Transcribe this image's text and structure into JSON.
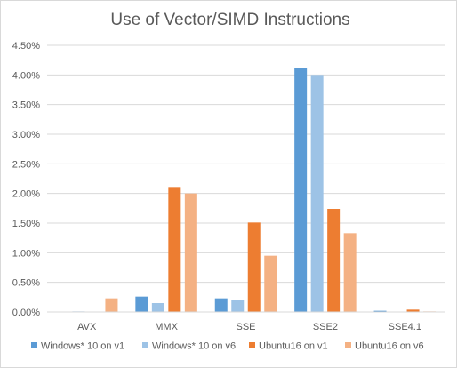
{
  "chart_data": {
    "type": "bar",
    "title": "Use of Vector/SIMD Instructions",
    "xlabel": "",
    "ylabel": "",
    "categories": [
      "AVX",
      "MMX",
      "SSE",
      "SSE2",
      "SSE4.1"
    ],
    "series": [
      {
        "name": "Windows* 10 on v1",
        "color": "#5b9bd5",
        "values": [
          0.0,
          0.26,
          0.23,
          4.11,
          0.02
        ]
      },
      {
        "name": "Windows* 10 on v6",
        "color": "#9dc3e6",
        "values": [
          0.01,
          0.15,
          0.21,
          4.0,
          0.0
        ]
      },
      {
        "name": "Ubuntu16 on v1",
        "color": "#ed7d31",
        "values": [
          0.0,
          2.11,
          1.51,
          1.74,
          0.04
        ]
      },
      {
        "name": "Ubuntu16 on v6",
        "color": "#f4b183",
        "values": [
          0.23,
          2.0,
          0.95,
          1.33,
          0.01
        ]
      }
    ],
    "ylim": [
      0,
      4.5
    ],
    "yticks": [
      "0.00%",
      "0.50%",
      "1.00%",
      "1.50%",
      "2.00%",
      "2.50%",
      "3.00%",
      "3.50%",
      "4.00%",
      "4.50%"
    ],
    "grid": true,
    "legend_position": "bottom",
    "axis_line_color": "#d9d9d9",
    "grid_color": "#d9d9d9"
  }
}
